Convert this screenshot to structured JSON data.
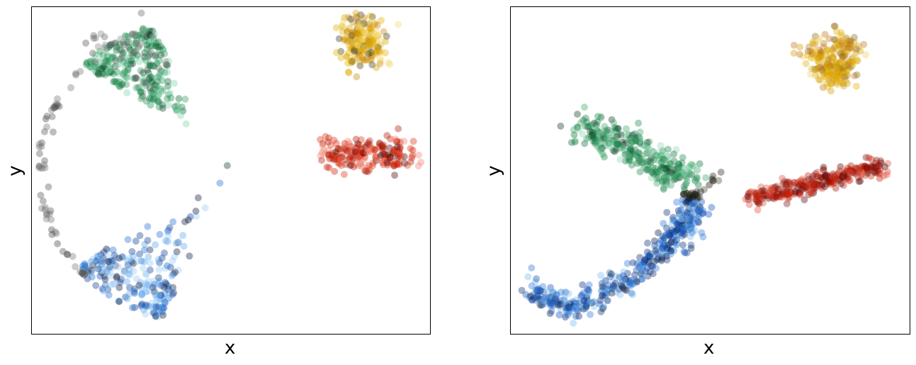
{
  "chart_data": [
    {
      "type": "scatter",
      "title": "",
      "xlabel": "x",
      "ylabel": "y",
      "xticks": [],
      "yticks": [],
      "xlim": [
        0,
        1
      ],
      "ylim": [
        0,
        1
      ],
      "grid": false,
      "legend": "none",
      "clusters": [
        {
          "kind": "arc",
          "a0": 2.42,
          "a1": 2.0,
          "r": 0.5,
          "cx": 0.5,
          "cy": 0.5,
          "spread": 0.04,
          "n": 260,
          "colors": [
            "#006633",
            "#1a8a4a",
            "#2e9c5f",
            "#7fd1a8"
          ],
          "inner_color": "#0f3b22"
        },
        {
          "kind": "arc",
          "a0": 3.8,
          "a1": 4.35,
          "r": 0.5,
          "cx": 0.5,
          "cy": 0.5,
          "spread": 0.04,
          "n": 230,
          "colors": [
            "#0a3d91",
            "#1f6fd1",
            "#5aa6ee",
            "#9ccbf5"
          ],
          "inner_color": "#071a3d"
        },
        {
          "kind": "arc",
          "a0": 2.45,
          "a1": 3.9,
          "r": 0.5,
          "cx": 0.5,
          "cy": 0.5,
          "spread": 0.004,
          "n": 60,
          "colors": [
            "#555555",
            "#777777"
          ],
          "inner_color": "#444444"
        },
        {
          "kind": "blob",
          "x": [
            0.82,
            0.86
          ],
          "y": [
            0.85,
            0.95
          ],
          "spread": 0.03,
          "n": 200,
          "colors": [
            "#e3b000",
            "#d4a200",
            "#c8860f",
            "#f5d66a"
          ],
          "inner_color": "#3a3a1f"
        },
        {
          "kind": "blob",
          "x": [
            0.74,
            0.96
          ],
          "y": [
            0.51,
            0.59
          ],
          "spread": 0.015,
          "n": 200,
          "colors": [
            "#cc1a00",
            "#e03010",
            "#b01500",
            "#f28070"
          ],
          "inner_color": "#4a0000"
        },
        {
          "kind": "blob",
          "x": [
            0.13,
            0.3
          ],
          "y": [
            0.83,
            0.93
          ],
          "spread": 0.03,
          "n": 35,
          "colors": [
            "#888888",
            "#666666"
          ],
          "inner_color": "#555555"
        }
      ]
    },
    {
      "type": "scatter",
      "title": "",
      "xlabel": "x",
      "ylabel": "y",
      "xticks": [],
      "yticks": [],
      "xlim": [
        0,
        1
      ],
      "ylim": [
        0,
        1
      ],
      "grid": false,
      "legend": "none",
      "clusters": [
        {
          "kind": "curve",
          "pts": [
            [
              0.04,
              0.12
            ],
            [
              0.15,
              0.07
            ],
            [
              0.28,
              0.15
            ],
            [
              0.38,
              0.25
            ],
            [
              0.43,
              0.33
            ],
            [
              0.46,
              0.4
            ]
          ],
          "spread": 0.02,
          "n": 420,
          "colors": [
            "#0a2d7a",
            "#1152b8",
            "#2e7ad8",
            "#7ab8f0"
          ],
          "inner_color": "#071a3d"
        },
        {
          "kind": "curve",
          "pts": [
            [
              0.17,
              0.63
            ],
            [
              0.25,
              0.6
            ],
            [
              0.33,
              0.55
            ],
            [
              0.4,
              0.5
            ],
            [
              0.42,
              0.47
            ]
          ],
          "spread": 0.025,
          "n": 320,
          "colors": [
            "#0d6e3a",
            "#1a8a4a",
            "#3ba56a",
            "#8ed6b0"
          ],
          "inner_color": "#0f3b22"
        },
        {
          "kind": "curve",
          "pts": [
            [
              0.43,
              0.43
            ],
            [
              0.47,
              0.42
            ],
            [
              0.53,
              0.5
            ]
          ],
          "spread": 0.006,
          "n": 30,
          "colors": [
            "#2a2a1a",
            "#111111",
            "#4a4a30"
          ],
          "inner_color": "#000000"
        },
        {
          "kind": "curve",
          "pts": [
            [
              0.75,
              0.88
            ],
            [
              0.8,
              0.84
            ],
            [
              0.82,
              0.78
            ],
            [
              0.86,
              0.86
            ],
            [
              0.82,
              0.92
            ]
          ],
          "spread": 0.02,
          "n": 260,
          "colors": [
            "#e3b000",
            "#d49a00",
            "#c07a1a",
            "#f0d060"
          ],
          "inner_color": "#8a6a20"
        },
        {
          "kind": "curve",
          "pts": [
            [
              0.6,
              0.41
            ],
            [
              0.72,
              0.44
            ],
            [
              0.83,
              0.48
            ],
            [
              0.94,
              0.51
            ]
          ],
          "spread": 0.015,
          "n": 300,
          "colors": [
            "#cc1a00",
            "#a31200",
            "#7a1010",
            "#e05040"
          ],
          "inner_color": "#4a0000"
        }
      ]
    }
  ]
}
